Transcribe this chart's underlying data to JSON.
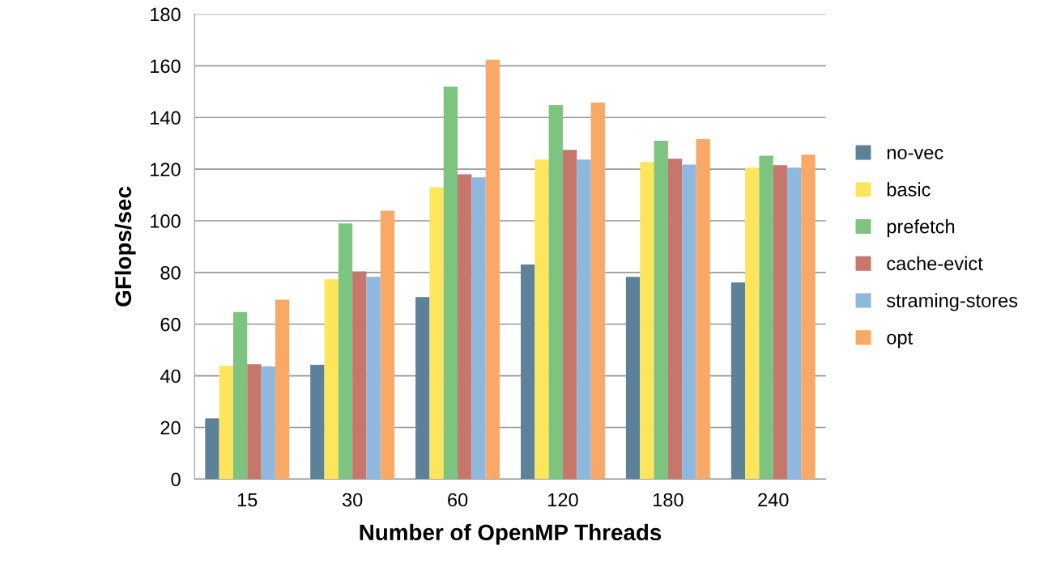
{
  "chart_data": {
    "type": "bar",
    "xlabel": "Number of OpenMP Threads",
    "ylabel": "GFlops/sec",
    "categories": [
      "15",
      "30",
      "60",
      "120",
      "180",
      "240"
    ],
    "series": [
      {
        "name": "no-vec",
        "color": "#5d8199",
        "values": [
          23.5,
          44.3,
          70.5,
          83.1,
          78.3,
          76.1
        ]
      },
      {
        "name": "basic",
        "color": "#fde55c",
        "values": [
          43.9,
          77.4,
          113,
          123.7,
          122.8,
          120.6
        ]
      },
      {
        "name": "prefetch",
        "color": "#7cc47f",
        "values": [
          64.7,
          99,
          152,
          144.8,
          131,
          125.2
        ]
      },
      {
        "name": "cache-evict",
        "color": "#c7766c",
        "values": [
          44.5,
          80.4,
          118,
          127.5,
          124,
          121.5
        ]
      },
      {
        "name": "straming-stores",
        "color": "#8fb8de",
        "values": [
          43.6,
          78.3,
          116.8,
          123.7,
          121.8,
          120.6
        ]
      },
      {
        "name": "opt",
        "color": "#f9a866",
        "values": [
          69.5,
          103.9,
          162.4,
          145.8,
          131.6,
          125.6
        ]
      }
    ],
    "ylim": [
      0,
      180
    ],
    "yticks": [
      0,
      20,
      40,
      60,
      80,
      100,
      120,
      140,
      160,
      180
    ],
    "grid": "y",
    "legend": "right"
  }
}
